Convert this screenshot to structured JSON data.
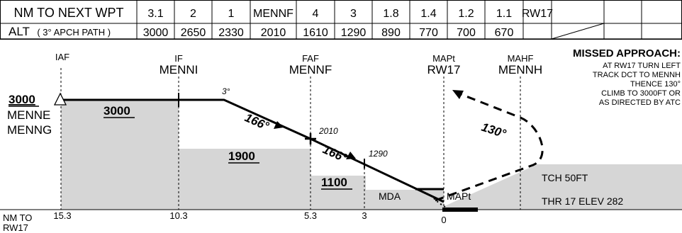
{
  "table": {
    "row1_label": "NM TO NEXT WPT",
    "row2_label_main": "ALT",
    "row2_label_sub": "( 3° APCH PATH )",
    "dist_values": [
      "3.1",
      "2",
      "1",
      "MENNF",
      "4",
      "3",
      "1.8",
      "1.4",
      "1.2",
      "1.1",
      "RW17"
    ],
    "alt_values": [
      "3000",
      "2650",
      "2330",
      "2010",
      "1610",
      "1290",
      "890",
      "770",
      "700",
      "670"
    ]
  },
  "fixes": {
    "iaf": {
      "role": "IAF",
      "name": ""
    },
    "if": {
      "role": "IF",
      "name": "MENNI"
    },
    "faf": {
      "role": "FAF",
      "name": "MENNF"
    },
    "mapt": {
      "role": "MAPt",
      "name": "RW17"
    },
    "mahf": {
      "role": "MAHF",
      "name": "MENNH"
    }
  },
  "iaf_block": {
    "altitude": "3000",
    "names": [
      "MENNE",
      "MENNG"
    ]
  },
  "segment_altitudes": [
    "3000",
    "1900",
    "1100"
  ],
  "glide_angle": "3°",
  "courses": [
    "166°",
    "166°",
    "130°"
  ],
  "step_altitudes": [
    "2010",
    "1290"
  ],
  "mda_label": "MDA",
  "mapt_label": "MAPt",
  "tch_label": "TCH 50FT",
  "thr_label": "THR 17 ELEV 282",
  "missed_approach": {
    "title": "MISSED APPROACH:",
    "lines": [
      "AT RW17 TURN LEFT",
      "TRACK DCT TO MENNH",
      "THENCE 130°",
      "CLIMB TO 3000FT OR",
      "AS DIRECTED BY ATC"
    ]
  },
  "distance_axis": {
    "label_lines": [
      "NM TO",
      "RW17"
    ],
    "ticks": [
      "15.3",
      "10.3",
      "5.3",
      "3",
      "0"
    ]
  }
}
